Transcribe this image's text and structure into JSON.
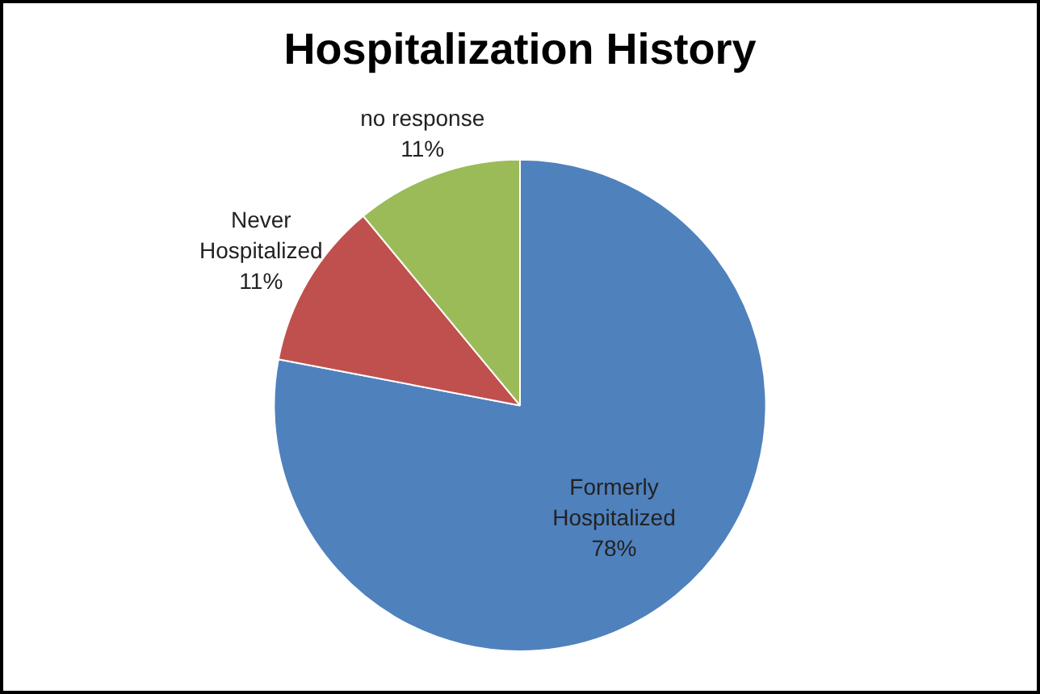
{
  "chart_data": {
    "type": "pie",
    "title": "Hospitalization History",
    "categories": [
      "Formerly Hospitalized",
      "Never Hospitalized",
      "no response"
    ],
    "values": [
      78,
      11,
      11
    ],
    "colors": [
      "#4f81bd",
      "#c0504d",
      "#9bbb59"
    ],
    "value_labels": [
      "78%",
      "11%",
      "11%"
    ],
    "legend": false
  }
}
